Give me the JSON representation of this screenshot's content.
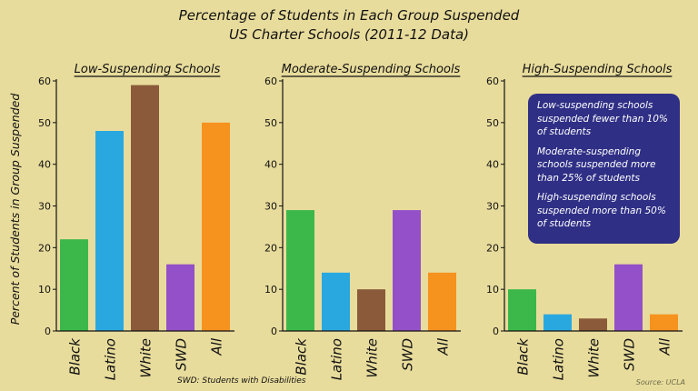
{
  "chart_data": [
    {
      "type": "bar",
      "title": "Low-Suspending Schools",
      "categories": [
        "Black",
        "Latino",
        "White",
        "SWD",
        "All"
      ],
      "values": [
        22,
        48,
        59,
        16,
        50
      ],
      "ylim": [
        0,
        60
      ],
      "yticks": [
        0,
        10,
        20,
        30,
        40,
        50,
        60
      ]
    },
    {
      "type": "bar",
      "title": "Moderate-Suspending Schools",
      "categories": [
        "Black",
        "Latino",
        "White",
        "SWD",
        "All"
      ],
      "values": [
        29,
        14,
        10,
        29,
        14
      ],
      "ylim": [
        0,
        60
      ],
      "yticks": [
        0,
        10,
        20,
        30,
        40,
        50,
        60
      ]
    },
    {
      "type": "bar",
      "title": "High-Suspending Schools",
      "categories": [
        "Black",
        "Latino",
        "White",
        "SWD",
        "All"
      ],
      "values": [
        10,
        4,
        3,
        16,
        4
      ],
      "ylim": [
        0,
        60
      ],
      "yticks": [
        0,
        10,
        20,
        30,
        40,
        50,
        60
      ]
    }
  ],
  "figure": {
    "title_line1": "Percentage of Students in Each Group Suspended",
    "title_line2": "US Charter Schools (2011-12 Data)",
    "ylabel": "Percent of Students in Group Suspended",
    "footnote": "SWD: Students with Disabilities",
    "source": "Source: UCLA",
    "bar_colors": [
      "#3cb84a",
      "#29a8e0",
      "#8a5a3a",
      "#9350c8",
      "#f6921e"
    ],
    "background": "#e8dc9c",
    "legend_bg": "#2f2f86",
    "legend_notes": [
      "Low-suspending schools suspended fewer than 10% of students",
      "Moderate-suspending schools suspended more than 25% of students",
      "High-suspending schools suspended more than 50% of students"
    ]
  }
}
